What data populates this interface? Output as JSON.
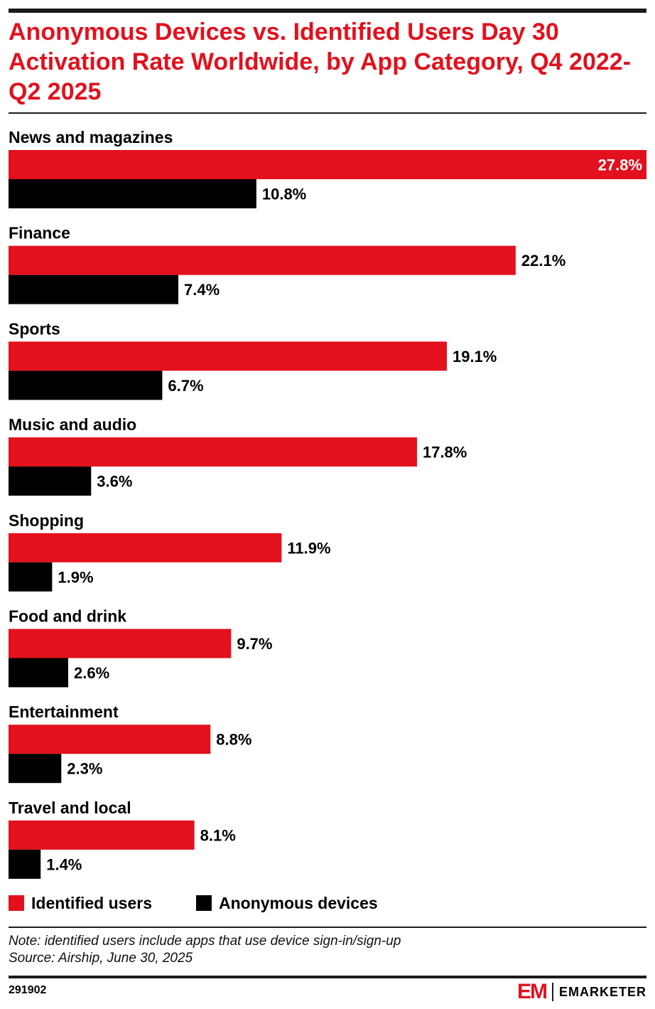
{
  "title": "Anonymous Devices vs. Identified Users Day 30 Activation Rate Worldwide, by App Category, Q4 2022-Q2 2025",
  "colors": {
    "identified": "#e2111d",
    "anonymous": "#000000",
    "accent": "#e2111d"
  },
  "chart_data": {
    "type": "bar",
    "orientation": "horizontal",
    "title": "Anonymous Devices vs. Identified Users Day 30 Activation Rate Worldwide, by App Category, Q4 2022-Q2 2025",
    "categories": [
      "News and magazines",
      "Finance",
      "Sports",
      "Music and audio",
      "Shopping",
      "Food and drink",
      "Entertainment",
      "Travel and local"
    ],
    "series": [
      {
        "name": "Identified users",
        "values": [
          27.8,
          22.1,
          19.1,
          17.8,
          11.9,
          9.7,
          8.8,
          8.1
        ],
        "labels": [
          "27.8%",
          "22.1%",
          "19.1%",
          "17.8%",
          "11.9%",
          "9.7%",
          "8.8%",
          "8.1%"
        ]
      },
      {
        "name": "Anonymous devices",
        "values": [
          10.8,
          7.4,
          6.7,
          3.6,
          1.9,
          2.6,
          2.3,
          1.4
        ],
        "labels": [
          "10.8%",
          "7.4%",
          "6.7%",
          "3.6%",
          "1.9%",
          "2.6%",
          "2.3%",
          "1.4%"
        ]
      }
    ],
    "unit": "%",
    "grid": false,
    "legend": "bottom-left"
  },
  "legend": {
    "identified_label": "Identified users",
    "anonymous_label": "Anonymous devices"
  },
  "note": "Note: identified users include apps that use device sign-in/sign-up",
  "source": "Source: Airship, June 30, 2025",
  "chart_id": "291902",
  "brand": {
    "mark": "EM",
    "wordmark": "EMARKETER"
  }
}
